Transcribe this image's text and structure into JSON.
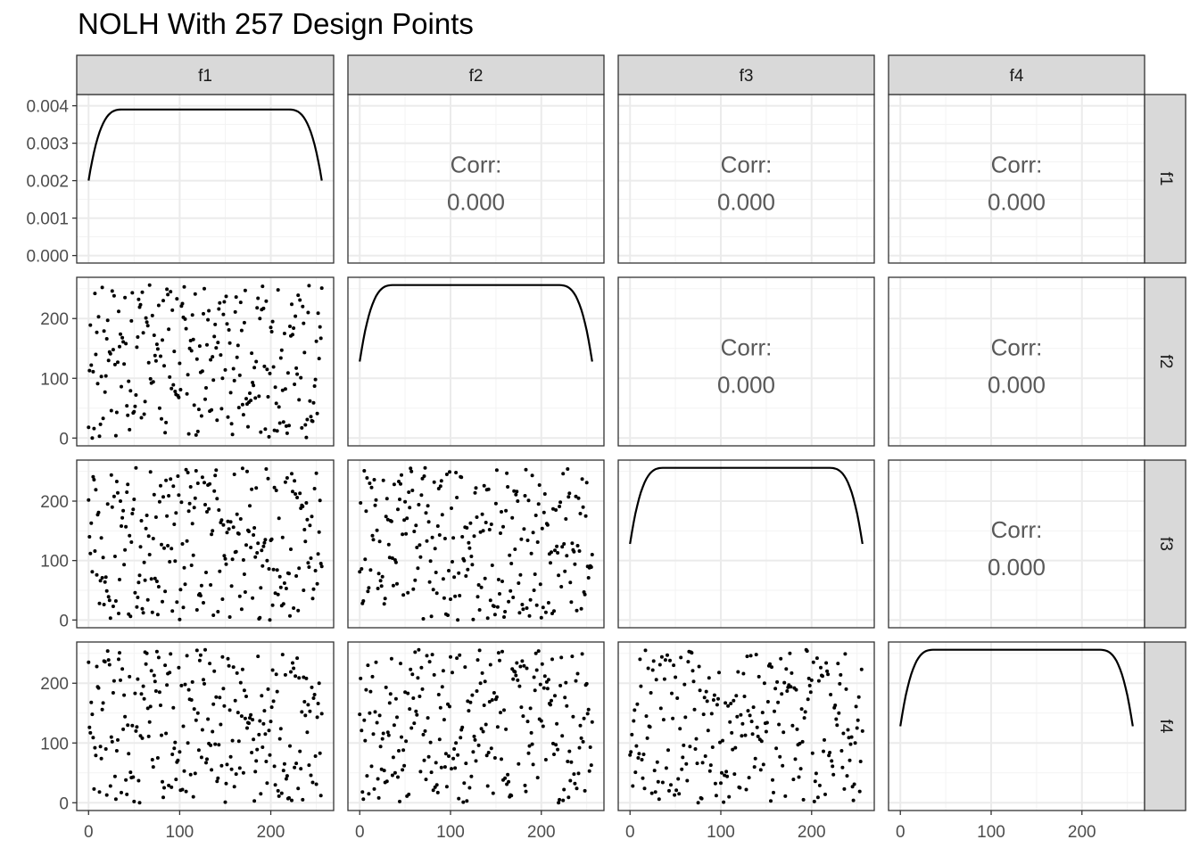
{
  "title": "NOLH With 257 Design Points",
  "chart_data": {
    "type": "scatter",
    "title": "NOLH With 257 Design Points",
    "variables": [
      "f1",
      "f2",
      "f3",
      "f4"
    ],
    "n_points": 257,
    "x_ticks": [
      "0",
      "100",
      "200"
    ],
    "xlim": [
      -13,
      269
    ],
    "density_ylim": [
      -0.0002,
      0.0043
    ],
    "density_ticks": [
      "0.000",
      "0.001",
      "0.002",
      "0.003",
      "0.004"
    ],
    "scatter_ylim": [
      -13,
      269
    ],
    "scatter_ticks": [
      "0",
      "100",
      "200"
    ],
    "density_peak": 0.0039,
    "density_edge": 0.002,
    "corr_label": "Corr:",
    "corr_values": {
      "f1_f2": "0.000",
      "f1_f3": "0.000",
      "f1_f4": "0.000",
      "f2_f3": "0.000",
      "f2_f4": "0.000",
      "f3_f4": "0.000"
    },
    "colors": {
      "strip": "#d9d9d9",
      "panel_border": "#333333",
      "grid": "#ebebeb",
      "points": "#000000",
      "corr_text": "#595959",
      "axis_text": "#4d4d4d"
    }
  }
}
